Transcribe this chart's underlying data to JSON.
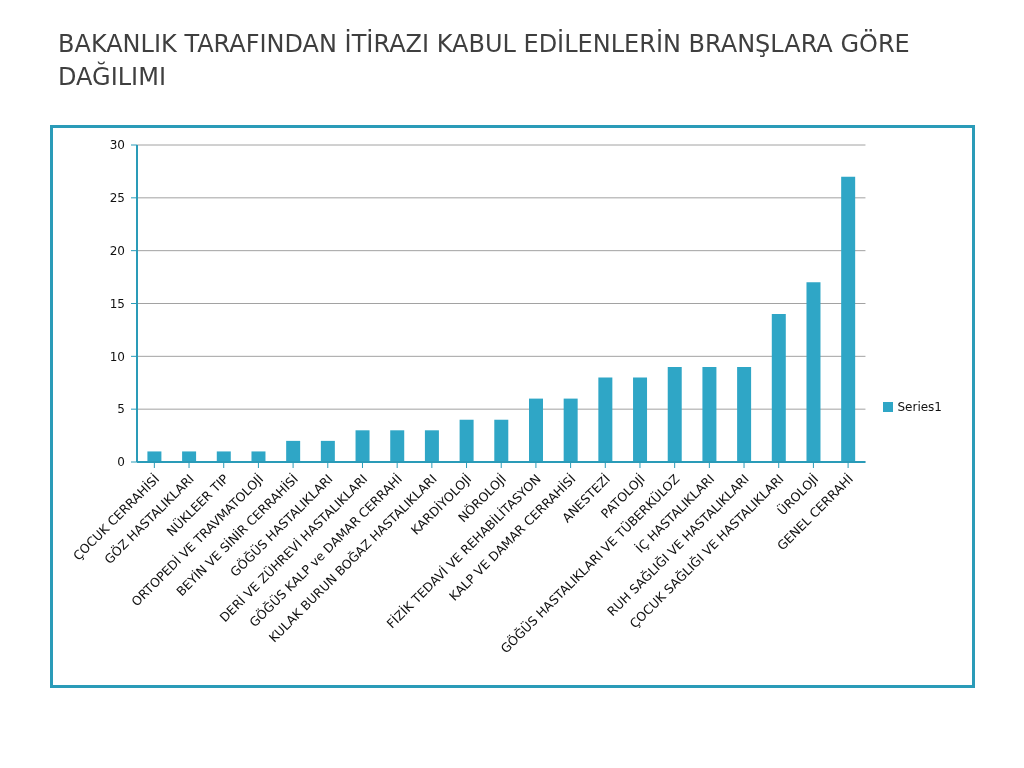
{
  "chart_data": {
    "type": "bar",
    "title": "BAKANLIK TARAFINDAN İTİRAZI KABUL EDİLENLERİN BRANŞLARA GÖRE DAĞILIMI",
    "categories": [
      "ÇOCUK CERRAHİSİ",
      "GÖZ HASTALIKLARI",
      "NÜKLEER TIP",
      "ORTOPEDİ VE TRAVMATOLOJİ",
      "BEYİN VE SİNİR CERRAHİSİ",
      "GÖĞÜS HASTALIKLARI",
      "DERİ VE ZÜHREVİ HASTALIKLARI",
      "GÖĞÜS KALP ve DAMAR CERRAHİ",
      "KULAK BURUN BOĞAZ HASTALIKLARI",
      "KARDİYOLOJİ",
      "NÖROLOJİ",
      "FİZİK TEDAVİ VE REHABİLİTASYON",
      "KALP VE DAMAR CERRAHİSİ",
      "ANESTEZİ",
      "PATOLOJİ",
      "GÖĞÜS HASTALIKLARI VE TÜBERKÜLOZ",
      "İÇ HASTALIKLARI",
      "RUH SAĞLIĞI VE HASTALIKLARI",
      "ÇOCUK SAĞLIĞI VE HASTALIKLARI",
      "ÜROLOJİ",
      "GENEL CERRAHİ"
    ],
    "series": [
      {
        "name": "Series1",
        "color": "#2fa6c6",
        "values": [
          1,
          1,
          1,
          1,
          2,
          2,
          3,
          3,
          3,
          4,
          4,
          6,
          6,
          8,
          8,
          9,
          9,
          9,
          14,
          17,
          27
        ]
      }
    ],
    "ylim": [
      0,
      30
    ],
    "yticks": [
      0,
      5,
      10,
      15,
      20,
      25,
      30
    ],
    "grid": "y",
    "legend": "right"
  }
}
